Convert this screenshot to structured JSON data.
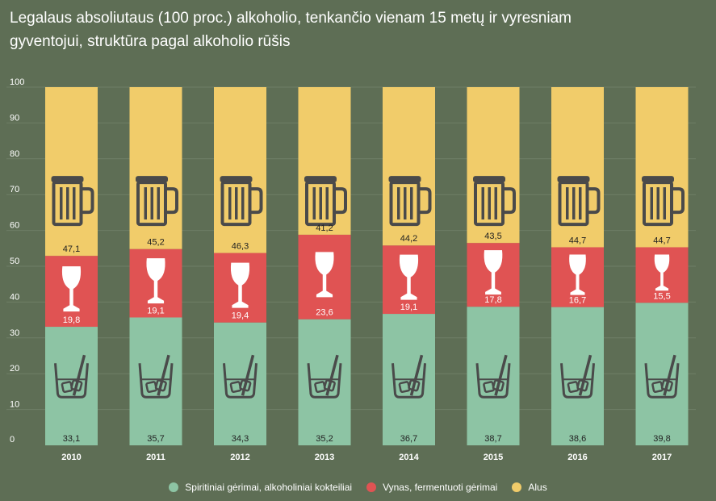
{
  "title": {
    "line1": "Legalaus absoliutaus (100 proc.) alkoholio, tenkančio vienam 15 metų ir vyresniam",
    "line2": "gyventojui, struktūra pagal alkoholio rūšis"
  },
  "chart_data": {
    "type": "bar",
    "stacked": true,
    "title": "Legalaus absoliutaus (100 proc.) alkoholio, tenkančio vienam 15 metų ir vyresniam gyventojui, struktūra pagal alkoholio rūšis",
    "categories": [
      "2010",
      "2011",
      "2012",
      "2013",
      "2014",
      "2015",
      "2016",
      "2017"
    ],
    "ylim": [
      0,
      100
    ],
    "yticks": [
      0,
      10,
      20,
      30,
      40,
      50,
      60,
      70,
      80,
      90,
      100
    ],
    "grid": true,
    "legend_position": "bottom",
    "series": [
      {
        "name": "Spiritiniai gėrimai, alkoholiniai kokteiliai",
        "color": "#8dc4a4",
        "icon": "whisky-glass-icon",
        "values": [
          33.1,
          35.7,
          34.3,
          35.2,
          36.7,
          38.7,
          38.6,
          39.8
        ],
        "labels": [
          "33,1",
          "35,7",
          "34,3",
          "35,2",
          "36,7",
          "38,7",
          "38,6",
          "39,8"
        ]
      },
      {
        "name": "Vynas, fermentuoti gėrimai",
        "color": "#e05353",
        "icon": "wine-glass-icon",
        "values": [
          19.8,
          19.1,
          19.4,
          23.6,
          19.1,
          17.8,
          16.7,
          15.5
        ],
        "labels": [
          "19,8",
          "19,1",
          "19,4",
          "23,6",
          "19,1",
          "17,8",
          "16,7",
          "15,5"
        ]
      },
      {
        "name": "Alus",
        "color": "#f1cc6a",
        "icon": "beer-mug-icon",
        "values": [
          47.1,
          45.2,
          46.3,
          41.2,
          44.2,
          43.5,
          44.7,
          44.7
        ],
        "labels": [
          "47,1",
          "45,2",
          "46,3",
          "41,2",
          "44,2",
          "43,5",
          "44,7",
          "44,7"
        ]
      }
    ]
  },
  "colors": {
    "background": "#5e6e55",
    "gridline": "#6f7f66",
    "icon_dark": "#4a4a4a",
    "icon_light": "#ffffff"
  }
}
